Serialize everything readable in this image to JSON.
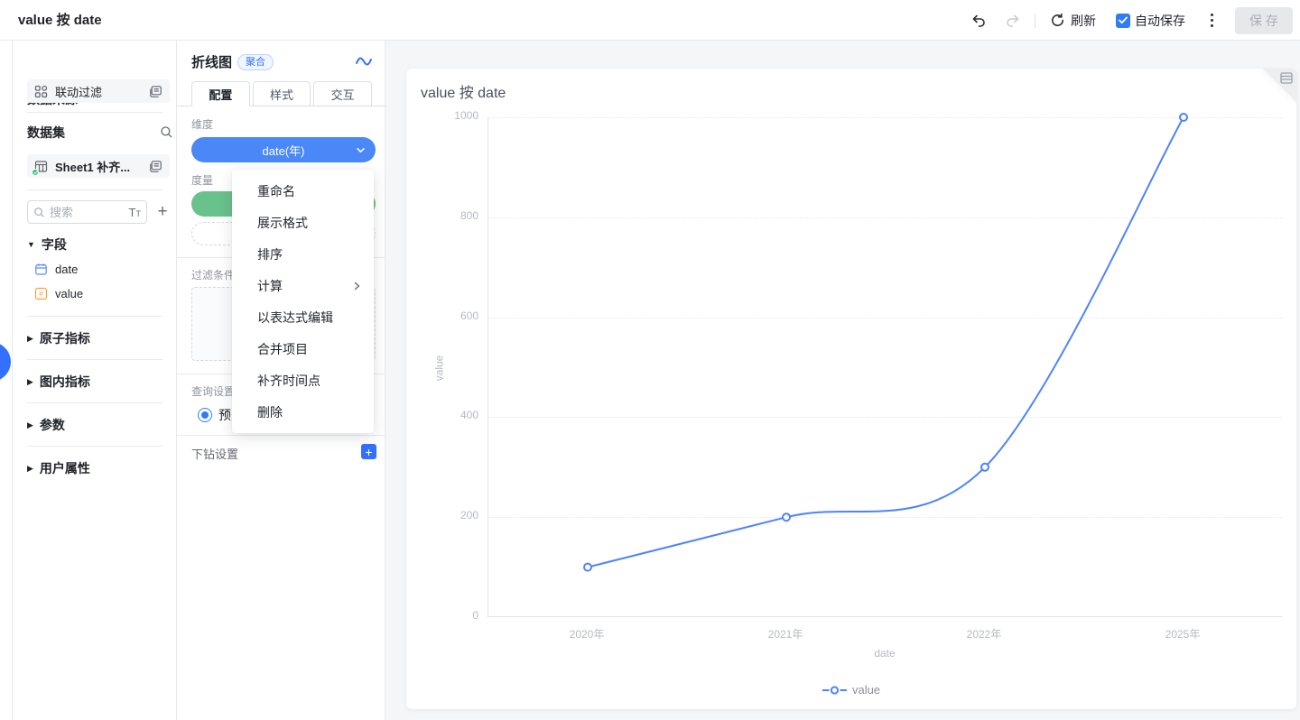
{
  "topbar": {
    "title": "value 按 date",
    "refresh_label": "刷新",
    "autosave_label": "自动保存",
    "save_label": "保 存"
  },
  "sidebar": {
    "source_heading": "数据来源",
    "source_item": {
      "label": "联动过滤"
    },
    "dataset_heading": "数据集",
    "dataset_item": {
      "label": "Sheet1 补齐..."
    },
    "search": {
      "placeholder": "搜索"
    },
    "fields_section": "字段",
    "fields": [
      {
        "name": "date"
      },
      {
        "name": "value"
      }
    ],
    "sections": [
      {
        "label": "原子指标"
      },
      {
        "label": "图内指标"
      },
      {
        "label": "参数"
      },
      {
        "label": "用户属性"
      }
    ]
  },
  "panel": {
    "title": "折线图",
    "badge": "聚合",
    "tabs": [
      {
        "label": "配置"
      },
      {
        "label": "样式"
      },
      {
        "label": "交互"
      }
    ],
    "dimension_label": "维度",
    "dimension_pill": "date(年)",
    "measure_label": "度量",
    "filter_label": "过滤条件",
    "query_label": "查询设置",
    "query_option": "预先",
    "drill_label": "下钻设置",
    "menu_items": [
      {
        "label": "重命名"
      },
      {
        "label": "展示格式"
      },
      {
        "label": "排序"
      },
      {
        "label": "计算",
        "submenu": true
      },
      {
        "label": "以表达式编辑"
      },
      {
        "label": "合并项目"
      },
      {
        "label": "补齐时间点"
      },
      {
        "label": "删除"
      }
    ]
  },
  "chart_data": {
    "type": "line",
    "title": "value 按 date",
    "categories": [
      "2020年",
      "2021年",
      "2022年",
      "2025年"
    ],
    "series": [
      {
        "name": "value",
        "values": [
          100,
          200,
          300,
          1000
        ]
      }
    ],
    "xlabel": "date",
    "ylabel": "value",
    "ylim": [
      0,
      1000
    ],
    "yticks": [
      0,
      200,
      400,
      600,
      800,
      1000
    ],
    "grid": "dotted-horizontal",
    "legend_position": "bottom",
    "smooth": true,
    "line_color": "#4e83fd"
  },
  "colors": {
    "accent": "#3370ff",
    "checkbox_blue": "#2f7cf6",
    "dimension_pill": "#4a87f7",
    "measure_pill": "#69c18c",
    "line": "#4e83fd"
  }
}
